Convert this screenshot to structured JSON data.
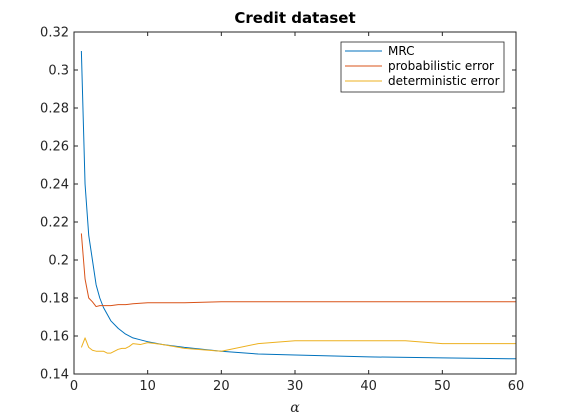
{
  "chart_data": {
    "type": "line",
    "title": "Credit dataset",
    "xlabel": "α",
    "ylabel": "",
    "xlim": [
      0,
      60
    ],
    "ylim": [
      0.14,
      0.32
    ],
    "xticks": [
      0,
      10,
      20,
      30,
      40,
      50,
      60
    ],
    "yticks": [
      0.14,
      0.16,
      0.18,
      0.2,
      0.22,
      0.24,
      0.26,
      0.28,
      0.3,
      0.32
    ],
    "xtick_labels": [
      "0",
      "10",
      "20",
      "30",
      "40",
      "50",
      "60"
    ],
    "ytick_labels": [
      "0.14",
      "0.16",
      "0.18",
      "0.2",
      "0.22",
      "0.24",
      "0.26",
      "0.28",
      "0.3",
      "0.32"
    ],
    "grid": false,
    "legend_position": "top-right",
    "series": [
      {
        "name": "MRC",
        "color": "#0072BD",
        "x": [
          1,
          1.5,
          2,
          2.5,
          3,
          3.5,
          4,
          5,
          6,
          7,
          8,
          9,
          10,
          12,
          15,
          20,
          25,
          30,
          40,
          50,
          60
        ],
        "values": [
          0.31,
          0.24,
          0.213,
          0.2,
          0.187,
          0.18,
          0.175,
          0.168,
          0.164,
          0.161,
          0.159,
          0.158,
          0.157,
          0.1555,
          0.154,
          0.152,
          0.1505,
          0.15,
          0.149,
          0.1485,
          0.148
        ]
      },
      {
        "name": "probabilistic error",
        "color": "#D95319",
        "x": [
          1,
          1.5,
          2,
          2.5,
          3,
          3.5,
          4,
          5,
          6,
          7,
          8,
          10,
          15,
          20,
          25,
          30,
          40,
          50,
          60
        ],
        "values": [
          0.214,
          0.19,
          0.18,
          0.178,
          0.1755,
          0.176,
          0.176,
          0.176,
          0.1765,
          0.1765,
          0.177,
          0.1775,
          0.1775,
          0.178,
          0.178,
          0.178,
          0.178,
          0.178,
          0.178
        ]
      },
      {
        "name": "deterministic error",
        "color": "#EDB120",
        "x": [
          1,
          1.5,
          2,
          2.5,
          3,
          3.5,
          4,
          4.5,
          5,
          5.5,
          6,
          6.5,
          7,
          7.5,
          8,
          9,
          10,
          12,
          15,
          20,
          25,
          30,
          35,
          40,
          45,
          50,
          55,
          60
        ],
        "values": [
          0.154,
          0.159,
          0.154,
          0.1525,
          0.152,
          0.152,
          0.152,
          0.151,
          0.151,
          0.152,
          0.153,
          0.1535,
          0.1535,
          0.1545,
          0.156,
          0.1555,
          0.1565,
          0.1555,
          0.1535,
          0.152,
          0.156,
          0.1575,
          0.1575,
          0.1575,
          0.1575,
          0.156,
          0.156,
          0.156
        ]
      }
    ]
  }
}
